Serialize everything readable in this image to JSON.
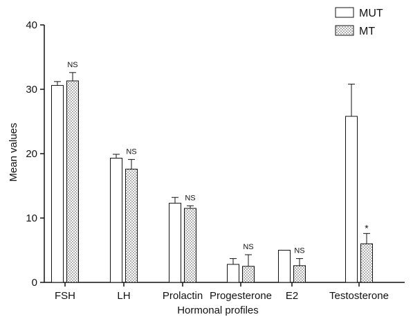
{
  "chart_data": {
    "type": "bar",
    "title": "",
    "xlabel": "Hormonal profiles",
    "ylabel": "Mean values",
    "ylim": [
      0,
      40
    ],
    "yticks": [
      0,
      10,
      20,
      30,
      40
    ],
    "grid": false,
    "legend_position": "top-right",
    "categories": [
      "FSH",
      "LH",
      "Prolactin",
      "Progesterone",
      "E2",
      "Testosterone"
    ],
    "series": [
      {
        "name": "MUT",
        "pattern": "plain",
        "values": [
          30.6,
          19.3,
          12.3,
          2.8,
          5.0,
          25.8
        ],
        "errors": [
          0.6,
          0.6,
          0.9,
          0.9,
          0.0,
          5.0
        ]
      },
      {
        "name": "MT",
        "pattern": "dotted",
        "values": [
          31.3,
          17.6,
          11.5,
          2.5,
          2.6,
          6.0
        ],
        "errors": [
          1.3,
          1.5,
          0.4,
          1.8,
          1.1,
          1.6
        ]
      }
    ],
    "annotations": [
      "NS",
      "NS",
      "NS",
      "NS",
      "NS",
      "*"
    ],
    "colors": {
      "bar_fill": "#ffffff",
      "stroke": "#111111",
      "dots": "#444444"
    }
  }
}
